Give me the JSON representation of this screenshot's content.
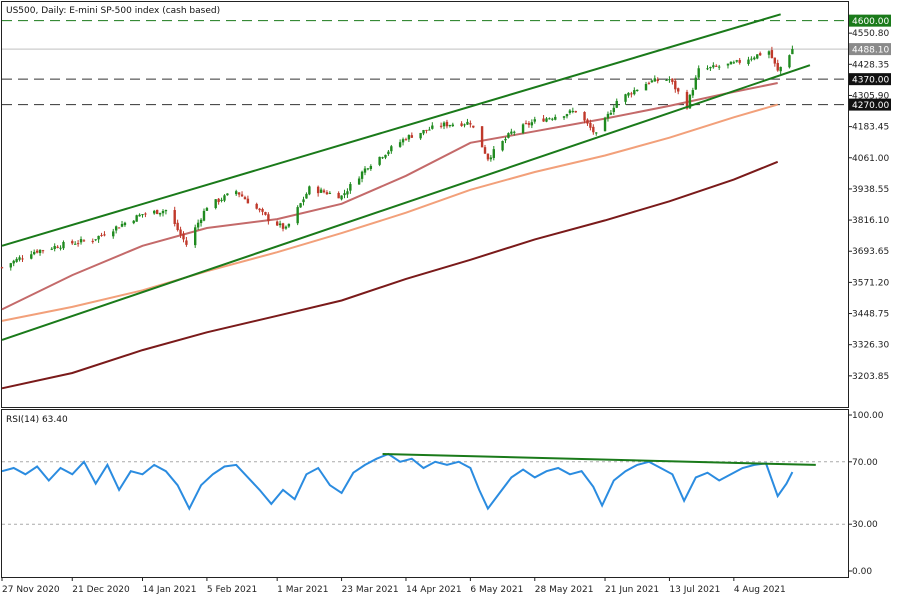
{
  "chart_data": [
    {
      "type": "candlestick",
      "title": "US500, Daily:  E-mini SP-500 index (cash based)",
      "y_ticks": [
        "4550.80",
        "4428.35",
        "4305.90",
        "4183.45",
        "4061.00",
        "3938.55",
        "3816.10",
        "3693.65",
        "3571.20",
        "3448.75",
        "3326.30",
        "3203.85"
      ],
      "y_tick_values": [
        4550.8,
        4428.35,
        4305.9,
        4183.45,
        4061.0,
        3938.55,
        3816.1,
        3693.65,
        3571.2,
        3448.75,
        3326.3,
        3203.85
      ],
      "ylim": [
        3081.4,
        4673.25
      ],
      "x_ticks": [
        "27 Nov 2020",
        "21 Dec 2020",
        "14 Jan 2021",
        "5 Feb 2021",
        "1 Mar 2021",
        "23 Mar 2021",
        "14 Apr 2021",
        "6 May 2021",
        "28 May 2021",
        "21 Jun 2021",
        "13 Jul 2021",
        "4 Aug 2021"
      ],
      "x_dates": [
        "2020-11-27",
        "2020-12-21",
        "2021-01-14",
        "2021-02-05",
        "2021-03-01",
        "2021-03-23",
        "2021-04-14",
        "2021-05-06",
        "2021-05-28",
        "2021-06-21",
        "2021-07-13",
        "2021-08-04"
      ],
      "xlim": [
        "2020-11-27",
        "2021-09-12"
      ],
      "last_price": 4488.1,
      "price_labels": [
        {
          "text": "4600.00",
          "value": 4600.0,
          "color": "#1a7a1a"
        },
        {
          "text": "4488.10",
          "value": 4488.1,
          "color": "#8a8a8a"
        },
        {
          "text": "4370.00",
          "value": 4370.0,
          "color": "#111111"
        },
        {
          "text": "4270.00",
          "value": 4270.0,
          "color": "#111111"
        }
      ],
      "horizontal_levels": [
        {
          "value": 4600.0,
          "style": "dashed",
          "color": "#1a7a1a"
        },
        {
          "value": 4370.0,
          "style": "dashed",
          "color": "#333333"
        },
        {
          "value": 4270.0,
          "style": "dashed",
          "color": "#333333"
        }
      ],
      "channel_lines": [
        {
          "name": "upper",
          "points": [
            {
              "date": "2020-11-27",
              "value": 3715
            },
            {
              "date": "2021-08-20",
              "value": 4625
            }
          ],
          "color": "#1a7a1a"
        },
        {
          "name": "lower",
          "points": [
            {
              "date": "2020-11-27",
              "value": 3345
            },
            {
              "date": "2021-08-30",
              "value": 4425
            }
          ],
          "color": "#1a7a1a"
        }
      ],
      "moving_averages": [
        {
          "color": "#c46a6a",
          "points": [
            {
              "date": "2020-11-27",
              "value": 3465
            },
            {
              "date": "2020-12-21",
              "value": 3600
            },
            {
              "date": "2021-01-14",
              "value": 3715
            },
            {
              "date": "2021-02-05",
              "value": 3785
            },
            {
              "date": "2021-03-01",
              "value": 3820
            },
            {
              "date": "2021-03-23",
              "value": 3880
            },
            {
              "date": "2021-04-14",
              "value": 3990
            },
            {
              "date": "2021-05-06",
              "value": 4120
            },
            {
              "date": "2021-05-28",
              "value": 4165
            },
            {
              "date": "2021-06-21",
              "value": 4215
            },
            {
              "date": "2021-07-13",
              "value": 4265
            },
            {
              "date": "2021-08-04",
              "value": 4320
            },
            {
              "date": "2021-08-19",
              "value": 4355
            }
          ]
        },
        {
          "color": "#f2a07a",
          "points": [
            {
              "date": "2020-11-27",
              "value": 3420
            },
            {
              "date": "2020-12-21",
              "value": 3475
            },
            {
              "date": "2021-01-14",
              "value": 3540
            },
            {
              "date": "2021-02-05",
              "value": 3615
            },
            {
              "date": "2021-03-01",
              "value": 3690
            },
            {
              "date": "2021-03-23",
              "value": 3765
            },
            {
              "date": "2021-04-14",
              "value": 3845
            },
            {
              "date": "2021-05-06",
              "value": 3935
            },
            {
              "date": "2021-05-28",
              "value": 4005
            },
            {
              "date": "2021-06-21",
              "value": 4070
            },
            {
              "date": "2021-07-13",
              "value": 4140
            },
            {
              "date": "2021-08-04",
              "value": 4220
            },
            {
              "date": "2021-08-19",
              "value": 4270
            }
          ]
        },
        {
          "color": "#7a1a1a",
          "points": [
            {
              "date": "2020-11-27",
              "value": 3155
            },
            {
              "date": "2020-12-21",
              "value": 3215
            },
            {
              "date": "2021-01-14",
              "value": 3305
            },
            {
              "date": "2021-02-05",
              "value": 3375
            },
            {
              "date": "2021-03-01",
              "value": 3440
            },
            {
              "date": "2021-03-23",
              "value": 3500
            },
            {
              "date": "2021-04-14",
              "value": 3585
            },
            {
              "date": "2021-05-06",
              "value": 3660
            },
            {
              "date": "2021-05-28",
              "value": 3740
            },
            {
              "date": "2021-06-21",
              "value": 3815
            },
            {
              "date": "2021-07-13",
              "value": 3890
            },
            {
              "date": "2021-08-04",
              "value": 3975
            },
            {
              "date": "2021-08-19",
              "value": 4045
            }
          ]
        }
      ],
      "close_path": [
        {
          "date": "2020-11-27",
          "value": 3630
        },
        {
          "date": "2020-12-07",
          "value": 3690
        },
        {
          "date": "2020-12-18",
          "value": 3720
        },
        {
          "date": "2020-12-28",
          "value": 3740
        },
        {
          "date": "2021-01-07",
          "value": 3800
        },
        {
          "date": "2021-01-14",
          "value": 3840
        },
        {
          "date": "2021-01-22",
          "value": 3855
        },
        {
          "date": "2021-01-29",
          "value": 3720
        },
        {
          "date": "2021-02-05",
          "value": 3870
        },
        {
          "date": "2021-02-15",
          "value": 3930
        },
        {
          "date": "2021-02-26",
          "value": 3820
        },
        {
          "date": "2021-03-04",
          "value": 3780
        },
        {
          "date": "2021-03-12",
          "value": 3940
        },
        {
          "date": "2021-03-23",
          "value": 3910
        },
        {
          "date": "2021-04-01",
          "value": 4030
        },
        {
          "date": "2021-04-14",
          "value": 4140
        },
        {
          "date": "2021-04-26",
          "value": 4190
        },
        {
          "date": "2021-05-06",
          "value": 4200
        },
        {
          "date": "2021-05-12",
          "value": 4060
        },
        {
          "date": "2021-05-20",
          "value": 4160
        },
        {
          "date": "2021-05-28",
          "value": 4205
        },
        {
          "date": "2021-06-11",
          "value": 4245
        },
        {
          "date": "2021-06-18",
          "value": 4150
        },
        {
          "date": "2021-06-25",
          "value": 4285
        },
        {
          "date": "2021-07-06",
          "value": 4360
        },
        {
          "date": "2021-07-13",
          "value": 4370
        },
        {
          "date": "2021-07-19",
          "value": 4265
        },
        {
          "date": "2021-07-23",
          "value": 4405
        },
        {
          "date": "2021-08-04",
          "value": 4430
        },
        {
          "date": "2021-08-12",
          "value": 4465
        },
        {
          "date": "2021-08-16",
          "value": 4480
        },
        {
          "date": "2021-08-19",
          "value": 4400
        },
        {
          "date": "2021-08-24",
          "value": 4488
        }
      ]
    },
    {
      "type": "line",
      "title": "RSI(14) 63.40",
      "y_ticks": [
        "100.00",
        "70.00",
        "30.00",
        "0.00"
      ],
      "y_tick_values": [
        100,
        70,
        30,
        0
      ],
      "ylim": [
        0,
        100
      ],
      "levels": [
        70,
        30
      ],
      "line_color": "#2b8ce0",
      "trendline": {
        "points": [
          {
            "date": "2021-04-06",
            "value": 75
          },
          {
            "date": "2021-09-01",
            "value": 68
          }
        ],
        "color": "#1a7a1a"
      },
      "series": [
        {
          "values": [
            {
              "date": "2020-11-27",
              "value": 64
            },
            {
              "date": "2020-12-01",
              "value": 66
            },
            {
              "date": "2020-12-05",
              "value": 62
            },
            {
              "date": "2020-12-09",
              "value": 67
            },
            {
              "date": "2020-12-13",
              "value": 58
            },
            {
              "date": "2020-12-17",
              "value": 66
            },
            {
              "date": "2020-12-21",
              "value": 62
            },
            {
              "date": "2020-12-25",
              "value": 70
            },
            {
              "date": "2020-12-29",
              "value": 56
            },
            {
              "date": "2021-01-02",
              "value": 68
            },
            {
              "date": "2021-01-06",
              "value": 52
            },
            {
              "date": "2021-01-10",
              "value": 64
            },
            {
              "date": "2021-01-14",
              "value": 62
            },
            {
              "date": "2021-01-18",
              "value": 68
            },
            {
              "date": "2021-01-22",
              "value": 64
            },
            {
              "date": "2021-01-26",
              "value": 55
            },
            {
              "date": "2021-01-30",
              "value": 40
            },
            {
              "date": "2021-02-03",
              "value": 55
            },
            {
              "date": "2021-02-07",
              "value": 62
            },
            {
              "date": "2021-02-11",
              "value": 67
            },
            {
              "date": "2021-02-15",
              "value": 68
            },
            {
              "date": "2021-02-19",
              "value": 60
            },
            {
              "date": "2021-02-23",
              "value": 52
            },
            {
              "date": "2021-02-27",
              "value": 43
            },
            {
              "date": "2021-03-03",
              "value": 52
            },
            {
              "date": "2021-03-07",
              "value": 46
            },
            {
              "date": "2021-03-11",
              "value": 62
            },
            {
              "date": "2021-03-15",
              "value": 66
            },
            {
              "date": "2021-03-19",
              "value": 55
            },
            {
              "date": "2021-03-23",
              "value": 50
            },
            {
              "date": "2021-03-27",
              "value": 63
            },
            {
              "date": "2021-03-31",
              "value": 68
            },
            {
              "date": "2021-04-04",
              "value": 72
            },
            {
              "date": "2021-04-08",
              "value": 75
            },
            {
              "date": "2021-04-12",
              "value": 70
            },
            {
              "date": "2021-04-16",
              "value": 72
            },
            {
              "date": "2021-04-20",
              "value": 66
            },
            {
              "date": "2021-04-24",
              "value": 70
            },
            {
              "date": "2021-04-28",
              "value": 68
            },
            {
              "date": "2021-05-02",
              "value": 70
            },
            {
              "date": "2021-05-06",
              "value": 66
            },
            {
              "date": "2021-05-09",
              "value": 52
            },
            {
              "date": "2021-05-12",
              "value": 40
            },
            {
              "date": "2021-05-16",
              "value": 50
            },
            {
              "date": "2021-05-20",
              "value": 60
            },
            {
              "date": "2021-05-24",
              "value": 65
            },
            {
              "date": "2021-05-28",
              "value": 60
            },
            {
              "date": "2021-06-01",
              "value": 64
            },
            {
              "date": "2021-06-05",
              "value": 66
            },
            {
              "date": "2021-06-09",
              "value": 62
            },
            {
              "date": "2021-06-13",
              "value": 64
            },
            {
              "date": "2021-06-17",
              "value": 54
            },
            {
              "date": "2021-06-20",
              "value": 42
            },
            {
              "date": "2021-06-24",
              "value": 58
            },
            {
              "date": "2021-06-28",
              "value": 64
            },
            {
              "date": "2021-07-02",
              "value": 68
            },
            {
              "date": "2021-07-06",
              "value": 70
            },
            {
              "date": "2021-07-10",
              "value": 66
            },
            {
              "date": "2021-07-14",
              "value": 62
            },
            {
              "date": "2021-07-18",
              "value": 45
            },
            {
              "date": "2021-07-22",
              "value": 60
            },
            {
              "date": "2021-07-26",
              "value": 63
            },
            {
              "date": "2021-07-30",
              "value": 58
            },
            {
              "date": "2021-08-03",
              "value": 62
            },
            {
              "date": "2021-08-07",
              "value": 66
            },
            {
              "date": "2021-08-11",
              "value": 68
            },
            {
              "date": "2021-08-15",
              "value": 69
            },
            {
              "date": "2021-08-19",
              "value": 48
            },
            {
              "date": "2021-08-22",
              "value": 56
            },
            {
              "date": "2021-08-24",
              "value": 63.4
            }
          ]
        }
      ]
    }
  ]
}
